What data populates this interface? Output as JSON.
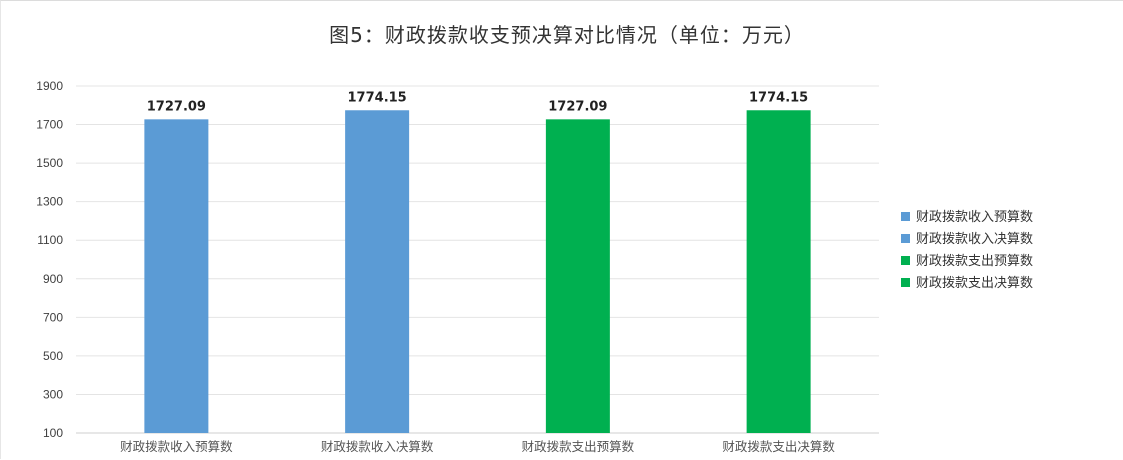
{
  "chart_data": {
    "type": "bar",
    "title": "图5：财政拨款收支预决算对比情况（单位：万元）",
    "xlabel": "",
    "ylabel": "",
    "categories": [
      "财政拨款收入预算数",
      "财政拨款收入决算数",
      "财政拨款支出预算数",
      "财政拨款支出决算数"
    ],
    "values": [
      1727.09,
      1774.15,
      1727.09,
      1774.15
    ],
    "value_labels": [
      "1727.09",
      "1774.15",
      "1727.09",
      "1774.15"
    ],
    "colors": [
      "#5b9bd5",
      "#5b9bd5",
      "#00b050",
      "#00b050"
    ],
    "ylim": [
      100,
      1900
    ],
    "yticks": [
      100,
      300,
      500,
      700,
      900,
      1100,
      1300,
      1500,
      1700,
      1900
    ],
    "grid": true,
    "legend_position": "right",
    "legend": [
      {
        "label": "财政拨款收入预算数",
        "color": "#5b9bd5"
      },
      {
        "label": "财政拨款收入决算数",
        "color": "#5b9bd5"
      },
      {
        "label": "财政拨款支出预算数",
        "color": "#00b050"
      },
      {
        "label": "财政拨款支出决算数",
        "color": "#00b050"
      }
    ]
  }
}
